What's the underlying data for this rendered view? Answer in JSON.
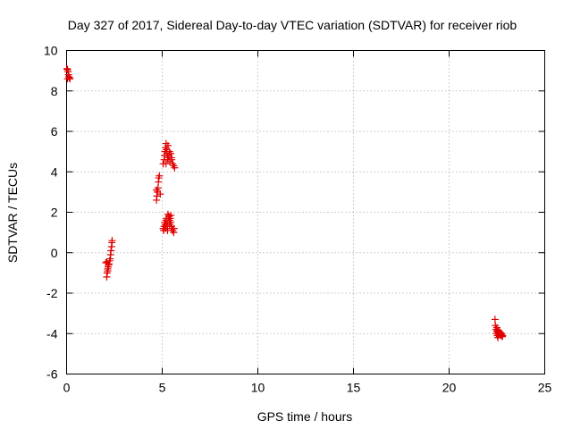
{
  "chart_data": {
    "type": "scatter",
    "title": "Day 327 of 2017, Sidereal Day-to-day VTEC variation (SDTVAR) for receiver riob",
    "xlabel": "GPS time / hours",
    "ylabel": "SDTVAR / TECUs",
    "xlim": [
      0,
      25
    ],
    "ylim": [
      -6,
      10
    ],
    "xticks": [
      0,
      5,
      10,
      15,
      20,
      25
    ],
    "yticks": [
      -6,
      -4,
      -2,
      0,
      2,
      4,
      6,
      8,
      10
    ],
    "grid": true,
    "marker": "+",
    "marker_color": "#e00000",
    "series": [
      {
        "name": "SDTVAR",
        "points": [
          [
            0.02,
            9.1
          ],
          [
            0.05,
            9.05
          ],
          [
            0.08,
            8.95
          ],
          [
            0.1,
            8.8
          ],
          [
            0.12,
            8.7
          ],
          [
            0.15,
            8.65
          ],
          [
            0.05,
            8.6
          ],
          [
            0.18,
            8.6
          ],
          [
            2.1,
            -1.2
          ],
          [
            2.12,
            -1.0
          ],
          [
            2.15,
            -0.8
          ],
          [
            2.18,
            -0.7
          ],
          [
            2.2,
            -0.6
          ],
          [
            2.05,
            -0.5
          ],
          [
            2.25,
            -0.4
          ],
          [
            2.1,
            -0.45
          ],
          [
            2.22,
            -0.55
          ],
          [
            2.28,
            -0.3
          ],
          [
            2.3,
            -0.1
          ],
          [
            2.32,
            0.1
          ],
          [
            2.35,
            0.3
          ],
          [
            2.37,
            0.5
          ],
          [
            2.38,
            0.6
          ],
          [
            2.15,
            -0.9
          ],
          [
            4.7,
            2.6
          ],
          [
            4.72,
            2.8
          ],
          [
            4.75,
            3.0
          ],
          [
            4.78,
            3.2
          ],
          [
            4.8,
            3.5
          ],
          [
            4.82,
            3.7
          ],
          [
            4.85,
            3.8
          ],
          [
            4.7,
            3.1
          ],
          [
            4.9,
            2.9
          ],
          [
            5.05,
            4.4
          ],
          [
            5.1,
            4.6
          ],
          [
            5.12,
            4.8
          ],
          [
            5.15,
            5.0
          ],
          [
            5.18,
            5.2
          ],
          [
            5.2,
            5.4
          ],
          [
            5.22,
            5.1
          ],
          [
            5.25,
            4.9
          ],
          [
            5.28,
            4.7
          ],
          [
            5.3,
            4.6
          ],
          [
            5.35,
            4.8
          ],
          [
            5.4,
            4.5
          ],
          [
            5.45,
            4.9
          ],
          [
            5.5,
            4.6
          ],
          [
            5.55,
            4.4
          ],
          [
            5.6,
            4.3
          ],
          [
            5.65,
            4.2
          ],
          [
            5.3,
            5.3
          ],
          [
            5.38,
            5.0
          ],
          [
            5.48,
            4.7
          ],
          [
            5.2,
            4.4
          ],
          [
            5.05,
            1.2
          ],
          [
            5.08,
            1.1
          ],
          [
            5.1,
            1.3
          ],
          [
            5.12,
            1.5
          ],
          [
            5.15,
            1.4
          ],
          [
            5.18,
            1.2
          ],
          [
            5.2,
            1.6
          ],
          [
            5.22,
            1.7
          ],
          [
            5.25,
            1.3
          ],
          [
            5.28,
            1.1
          ],
          [
            5.3,
            1.5
          ],
          [
            5.35,
            1.8
          ],
          [
            5.38,
            1.4
          ],
          [
            5.4,
            1.6
          ],
          [
            5.42,
            1.7
          ],
          [
            5.45,
            1.5
          ],
          [
            5.48,
            1.3
          ],
          [
            5.5,
            1.2
          ],
          [
            5.55,
            1.1
          ],
          [
            5.6,
            1.0
          ],
          [
            5.62,
            1.2
          ],
          [
            5.3,
            1.9
          ],
          [
            5.45,
            1.85
          ],
          [
            22.4,
            -3.3
          ],
          [
            22.42,
            -3.6
          ],
          [
            22.45,
            -3.8
          ],
          [
            22.48,
            -4.0
          ],
          [
            22.5,
            -3.9
          ],
          [
            22.52,
            -4.1
          ],
          [
            22.55,
            -3.85
          ],
          [
            22.58,
            -3.95
          ],
          [
            22.6,
            -4.05
          ],
          [
            22.62,
            -3.9
          ],
          [
            22.65,
            -4.0
          ],
          [
            22.68,
            -3.95
          ],
          [
            22.7,
            -4.1
          ],
          [
            22.72,
            -4.05
          ],
          [
            22.75,
            -4.0
          ],
          [
            22.78,
            -4.15
          ],
          [
            22.8,
            -4.1
          ],
          [
            22.5,
            -3.7
          ],
          [
            22.55,
            -4.2
          ]
        ]
      }
    ]
  }
}
